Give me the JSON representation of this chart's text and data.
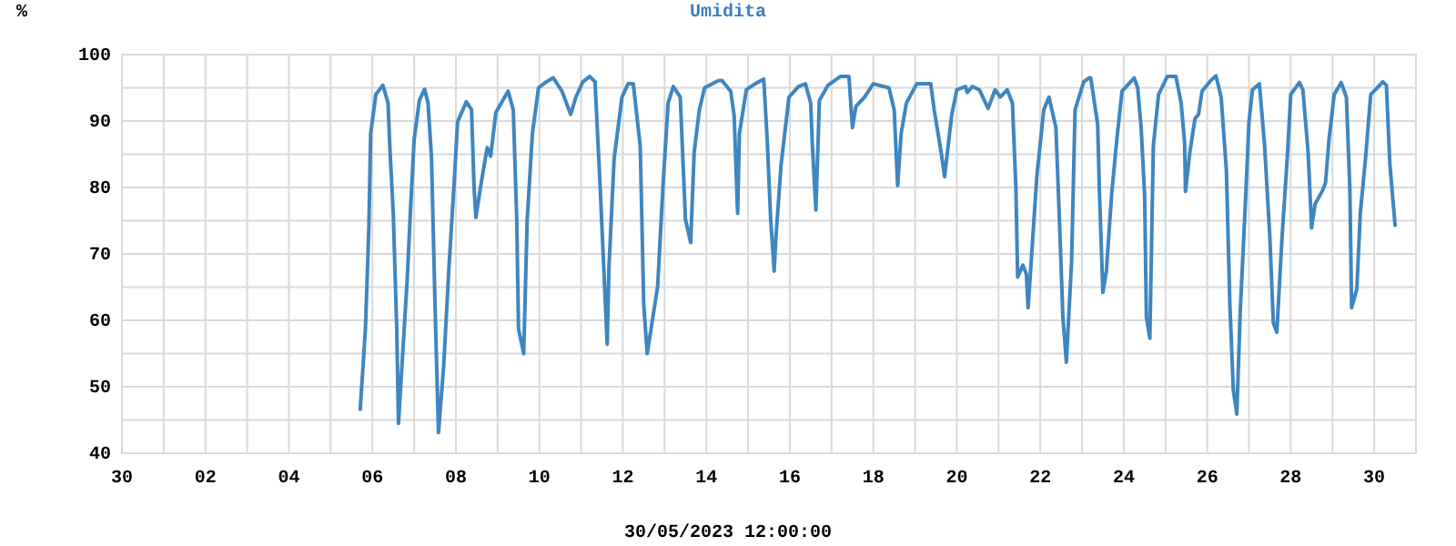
{
  "chart_data": {
    "type": "line",
    "title": "Umidita",
    "ylabel": "%",
    "xlabel": "30/05/2023 12:00:00",
    "xlim": [
      "2023-04-30",
      "2023-05-31"
    ],
    "xticks": [
      {
        "value": "2023-04-30",
        "label": "30"
      },
      {
        "value": "2023-05-01",
        "label": null
      },
      {
        "value": "2023-05-02",
        "label": "02"
      },
      {
        "value": "2023-05-03",
        "label": null
      },
      {
        "value": "2023-05-04",
        "label": "04"
      },
      {
        "value": "2023-05-05",
        "label": null
      },
      {
        "value": "2023-05-06",
        "label": "06"
      },
      {
        "value": "2023-05-07",
        "label": null
      },
      {
        "value": "2023-05-08",
        "label": "08"
      },
      {
        "value": "2023-05-09",
        "label": null
      },
      {
        "value": "2023-05-10",
        "label": "10"
      },
      {
        "value": "2023-05-11",
        "label": null
      },
      {
        "value": "2023-05-12",
        "label": "12"
      },
      {
        "value": "2023-05-13",
        "label": null
      },
      {
        "value": "2023-05-14",
        "label": "14"
      },
      {
        "value": "2023-05-15",
        "label": null
      },
      {
        "value": "2023-05-16",
        "label": "16"
      },
      {
        "value": "2023-05-17",
        "label": null
      },
      {
        "value": "2023-05-18",
        "label": "18"
      },
      {
        "value": "2023-05-19",
        "label": null
      },
      {
        "value": "2023-05-20",
        "label": "20"
      },
      {
        "value": "2023-05-21",
        "label": null
      },
      {
        "value": "2023-05-22",
        "label": "22"
      },
      {
        "value": "2023-05-23",
        "label": null
      },
      {
        "value": "2023-05-24",
        "label": "24"
      },
      {
        "value": "2023-05-25",
        "label": null
      },
      {
        "value": "2023-05-26",
        "label": "26"
      },
      {
        "value": "2023-05-27",
        "label": null
      },
      {
        "value": "2023-05-28",
        "label": "28"
      },
      {
        "value": "2023-05-29",
        "label": null
      },
      {
        "value": "2023-05-30",
        "label": "30"
      },
      {
        "value": "2023-05-31",
        "label": null
      }
    ],
    "ylim": [
      40,
      100
    ],
    "yticks": [
      40,
      {
        "value": 45,
        "label": null
      },
      50,
      {
        "value": 55,
        "label": null
      },
      60,
      {
        "value": 65,
        "label": null
      },
      70,
      {
        "value": 75,
        "label": null
      },
      80,
      {
        "value": 85,
        "label": null
      },
      90,
      {
        "value": 95,
        "label": null
      },
      100
    ],
    "grid": true,
    "line_style": "solid",
    "marker": "none",
    "series": [
      {
        "color": "#3f86c0",
        "x": [
          "2023-05-05T17:00",
          "2023-05-05T20:00",
          "2023-05-05T22:00",
          "2023-05-05T23:00",
          "2023-05-06T02:00",
          "2023-05-06T06:00",
          "2023-05-06T09:00",
          "2023-05-06T10:00",
          "2023-05-06T12:00",
          "2023-05-06T14:00",
          "2023-05-06T15:00",
          "2023-05-06T17:00",
          "2023-05-06T20:00",
          "2023-05-06T22:00",
          "2023-05-07T00:00",
          "2023-05-07T03:00",
          "2023-05-07T06:00",
          "2023-05-07T08:00",
          "2023-05-07T10:00",
          "2023-05-07T12:00",
          "2023-05-07T14:00",
          "2023-05-07T17:00",
          "2023-05-07T20:00",
          "2023-05-07T23:00",
          "2023-05-08T01:00",
          "2023-05-08T06:00",
          "2023-05-08T09:00",
          "2023-05-08T10:30",
          "2023-05-08T11:30",
          "2023-05-08T14:00",
          "2023-05-08T18:00",
          "2023-05-08T20:00",
          "2023-05-08T23:00",
          "2023-05-09T06:00",
          "2023-05-09T09:00",
          "2023-05-09T11:00",
          "2023-05-09T12:00",
          "2023-05-09T15:00",
          "2023-05-09T17:00",
          "2023-05-09T20:00",
          "2023-05-09T23:30",
          "2023-05-10T04:00",
          "2023-05-10T08:00",
          "2023-05-10T13:00",
          "2023-05-10T18:00",
          "2023-05-10T21:00",
          "2023-05-11T01:00",
          "2023-05-11T05:00",
          "2023-05-11T08:00",
          "2023-05-11T11:00",
          "2023-05-11T15:00",
          "2023-05-11T16:00",
          "2023-05-11T19:00",
          "2023-05-11T23:30",
          "2023-05-12T03:00",
          "2023-05-12T06:00",
          "2023-05-12T10:00",
          "2023-05-12T12:00",
          "2023-05-12T14:00",
          "2023-05-12T20:00",
          "2023-05-12T23:00",
          "2023-05-13T02:00",
          "2023-05-13T05:00",
          "2023-05-13T09:00",
          "2023-05-13T12:00",
          "2023-05-13T15:00",
          "2023-05-13T17:00",
          "2023-05-13T20:00",
          "2023-05-13T23:00",
          "2023-05-14T07:00",
          "2023-05-14T09:00",
          "2023-05-14T14:00",
          "2023-05-14T16:00",
          "2023-05-14T18:00",
          "2023-05-14T19:00",
          "2023-05-14T23:00",
          "2023-05-15T04:00",
          "2023-05-15T09:00",
          "2023-05-15T11:00",
          "2023-05-15T13:00",
          "2023-05-15T15:00",
          "2023-05-15T16:00",
          "2023-05-15T19:00",
          "2023-05-15T23:30",
          "2023-05-16T05:00",
          "2023-05-16T09:00",
          "2023-05-16T12:00",
          "2023-05-16T13:00",
          "2023-05-16T15:00",
          "2023-05-16T17:00",
          "2023-05-16T22:00",
          "2023-05-17T05:00",
          "2023-05-17T10:00",
          "2023-05-17T12:00",
          "2023-05-17T14:00",
          "2023-05-17T19:00",
          "2023-05-18T00:00",
          "2023-05-18T09:00",
          "2023-05-18T12:00",
          "2023-05-18T14:00",
          "2023-05-18T16:00",
          "2023-05-18T19:00",
          "2023-05-19T01:00",
          "2023-05-19T09:00",
          "2023-05-19T11:00",
          "2023-05-19T15:00",
          "2023-05-19T17:00",
          "2023-05-19T21:00",
          "2023-05-20T00:00",
          "2023-05-20T05:00",
          "2023-05-20T06:00",
          "2023-05-20T09:00",
          "2023-05-20T13:00",
          "2023-05-20T18:00",
          "2023-05-20T22:00",
          "2023-05-21T01:00",
          "2023-05-21T05:00",
          "2023-05-21T08:00",
          "2023-05-21T10:00",
          "2023-05-21T11:00",
          "2023-05-21T14:00",
          "2023-05-21T16:00",
          "2023-05-21T17:00",
          "2023-05-21T19:00",
          "2023-05-21T22:00",
          "2023-05-22T02:00",
          "2023-05-22T05:00",
          "2023-05-22T09:00",
          "2023-05-22T11:00",
          "2023-05-22T13:00",
          "2023-05-22T15:00",
          "2023-05-22T18:00",
          "2023-05-22T20:00",
          "2023-05-23T01:00",
          "2023-05-23T04:00",
          "2023-05-23T05:00",
          "2023-05-23T09:00",
          "2023-05-23T10:00",
          "2023-05-23T12:00",
          "2023-05-23T14:00",
          "2023-05-23T17:00",
          "2023-05-23T20:00",
          "2023-05-23T23:00",
          "2023-05-24T06:00",
          "2023-05-24T08:00",
          "2023-05-24T10:00",
          "2023-05-24T12:00",
          "2023-05-24T13:00",
          "2023-05-24T15:00",
          "2023-05-24T17:00",
          "2023-05-24T20:00",
          "2023-05-25T01:00",
          "2023-05-25T06:00",
          "2023-05-25T09:00",
          "2023-05-25T11:00",
          "2023-05-25T11:30",
          "2023-05-25T14:00",
          "2023-05-25T17:00",
          "2023-05-25T19:00",
          "2023-05-25T21:00",
          "2023-05-26T02:00",
          "2023-05-26T05:00",
          "2023-05-26T08:00",
          "2023-05-26T11:00",
          "2023-05-26T13:00",
          "2023-05-26T15:00",
          "2023-05-26T17:00",
          "2023-05-26T19:00",
          "2023-05-26T22:00",
          "2023-05-27T00:00",
          "2023-05-27T02:00",
          "2023-05-27T06:00",
          "2023-05-27T09:00",
          "2023-05-27T12:00",
          "2023-05-27T14:00",
          "2023-05-27T16:00",
          "2023-05-27T19:00",
          "2023-05-27T22:00",
          "2023-05-28T00:00",
          "2023-05-28T05:00",
          "2023-05-28T07:00",
          "2023-05-28T10:00",
          "2023-05-28T12:00",
          "2023-05-28T14:00",
          "2023-05-28T18:00",
          "2023-05-28T20:00",
          "2023-05-28T22:00",
          "2023-05-29T01:00",
          "2023-05-29T05:00",
          "2023-05-29T08:00",
          "2023-05-29T10:00",
          "2023-05-29T11:00",
          "2023-05-29T14:00",
          "2023-05-29T16:00",
          "2023-05-29T19:00",
          "2023-05-29T22:00",
          "2023-05-30T05:00",
          "2023-05-30T07:00",
          "2023-05-30T09:00",
          "2023-05-30T12:00"
        ],
        "values": [
          46.6,
          58.7,
          74.3,
          88.1,
          94.0,
          95.4,
          92.7,
          86.2,
          76.1,
          58.7,
          44.5,
          53.2,
          66.1,
          77.1,
          87.2,
          93.1,
          94.8,
          92.7,
          84.4,
          62.4,
          43.1,
          53.2,
          67.9,
          80.7,
          89.9,
          92.9,
          91.7,
          79.8,
          75.5,
          79.8,
          86.0,
          84.7,
          91.3,
          94.5,
          91.7,
          75.2,
          58.7,
          55.0,
          75.2,
          88.1,
          95.0,
          95.9,
          96.5,
          94.5,
          91.0,
          93.6,
          95.9,
          96.7,
          95.9,
          79.8,
          56.4,
          67.9,
          84.4,
          93.6,
          95.6,
          95.6,
          86.2,
          62.4,
          55.0,
          65.1,
          79.8,
          92.7,
          95.2,
          93.6,
          75.2,
          71.7,
          85.3,
          91.7,
          95.0,
          96.1,
          96.1,
          94.5,
          90.8,
          76.1,
          88.1,
          94.7,
          95.6,
          96.3,
          87.2,
          75.2,
          67.4,
          72.5,
          83.5,
          93.6,
          95.2,
          95.6,
          92.7,
          86.2,
          76.6,
          93.1,
          95.4,
          96.7,
          96.7,
          89.0,
          92.2,
          93.6,
          95.6,
          95.0,
          91.7,
          80.3,
          88.1,
          92.7,
          95.6,
          95.6,
          91.7,
          85.3,
          81.6,
          90.8,
          94.7,
          95.2,
          94.3,
          95.2,
          94.7,
          91.9,
          94.7,
          93.6,
          94.7,
          92.7,
          79.8,
          66.5,
          68.3,
          67.0,
          61.9,
          69.7,
          81.6,
          91.7,
          93.6,
          89.0,
          75.2,
          60.5,
          53.7,
          68.8,
          91.7,
          95.9,
          96.5,
          96.5,
          89.5,
          79.4,
          64.2,
          67.4,
          78.9,
          87.2,
          94.5,
          96.5,
          95.0,
          89.0,
          78.9,
          60.5,
          57.3,
          86.2,
          94.0,
          96.7,
          96.7,
          92.7,
          86.7,
          79.4,
          85.3,
          90.4,
          91.0,
          94.5,
          96.1,
          96.8,
          93.6,
          82.6,
          62.4,
          49.5,
          45.9,
          61.5,
          78.0,
          89.9,
          94.7,
          95.6,
          86.2,
          72.5,
          59.6,
          58.2,
          72.5,
          84.4,
          94.0,
          95.8,
          94.7,
          85.3,
          73.9,
          77.5,
          79.4,
          80.7,
          87.2,
          94.0,
          95.8,
          93.6,
          79.8,
          61.9,
          64.7,
          76.1,
          84.4,
          94.0,
          95.9,
          95.4,
          83.5,
          74.3
        ]
      }
    ]
  }
}
